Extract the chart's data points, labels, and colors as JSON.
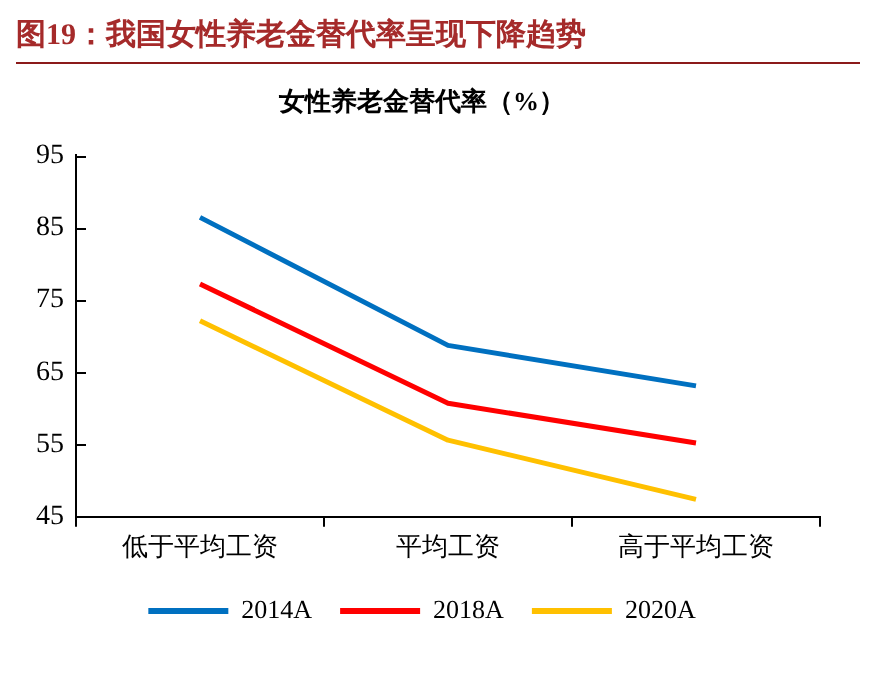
{
  "chart_data": {
    "type": "line",
    "title": "图19：我国女性养老金替代率呈现下降趋势",
    "subtitle": "女性养老金替代率（%）",
    "categories": [
      "低于平均工资",
      "平均工资",
      "高于平均工资"
    ],
    "series": [
      {
        "name": "2014A",
        "color": "#0070c0",
        "values": [
          86.4,
          68.7,
          63.1
        ]
      },
      {
        "name": "2018A",
        "color": "#ff0000",
        "values": [
          77.2,
          60.7,
          55.2
        ]
      },
      {
        "name": "2020A",
        "color": "#ffc000",
        "values": [
          72.1,
          55.6,
          47.4
        ]
      }
    ],
    "ylim": [
      45,
      95
    ],
    "yticks": [
      45,
      55,
      65,
      75,
      85,
      95
    ],
    "grid": false,
    "legend": "bottom",
    "marker": "none",
    "line_style": "solid"
  }
}
